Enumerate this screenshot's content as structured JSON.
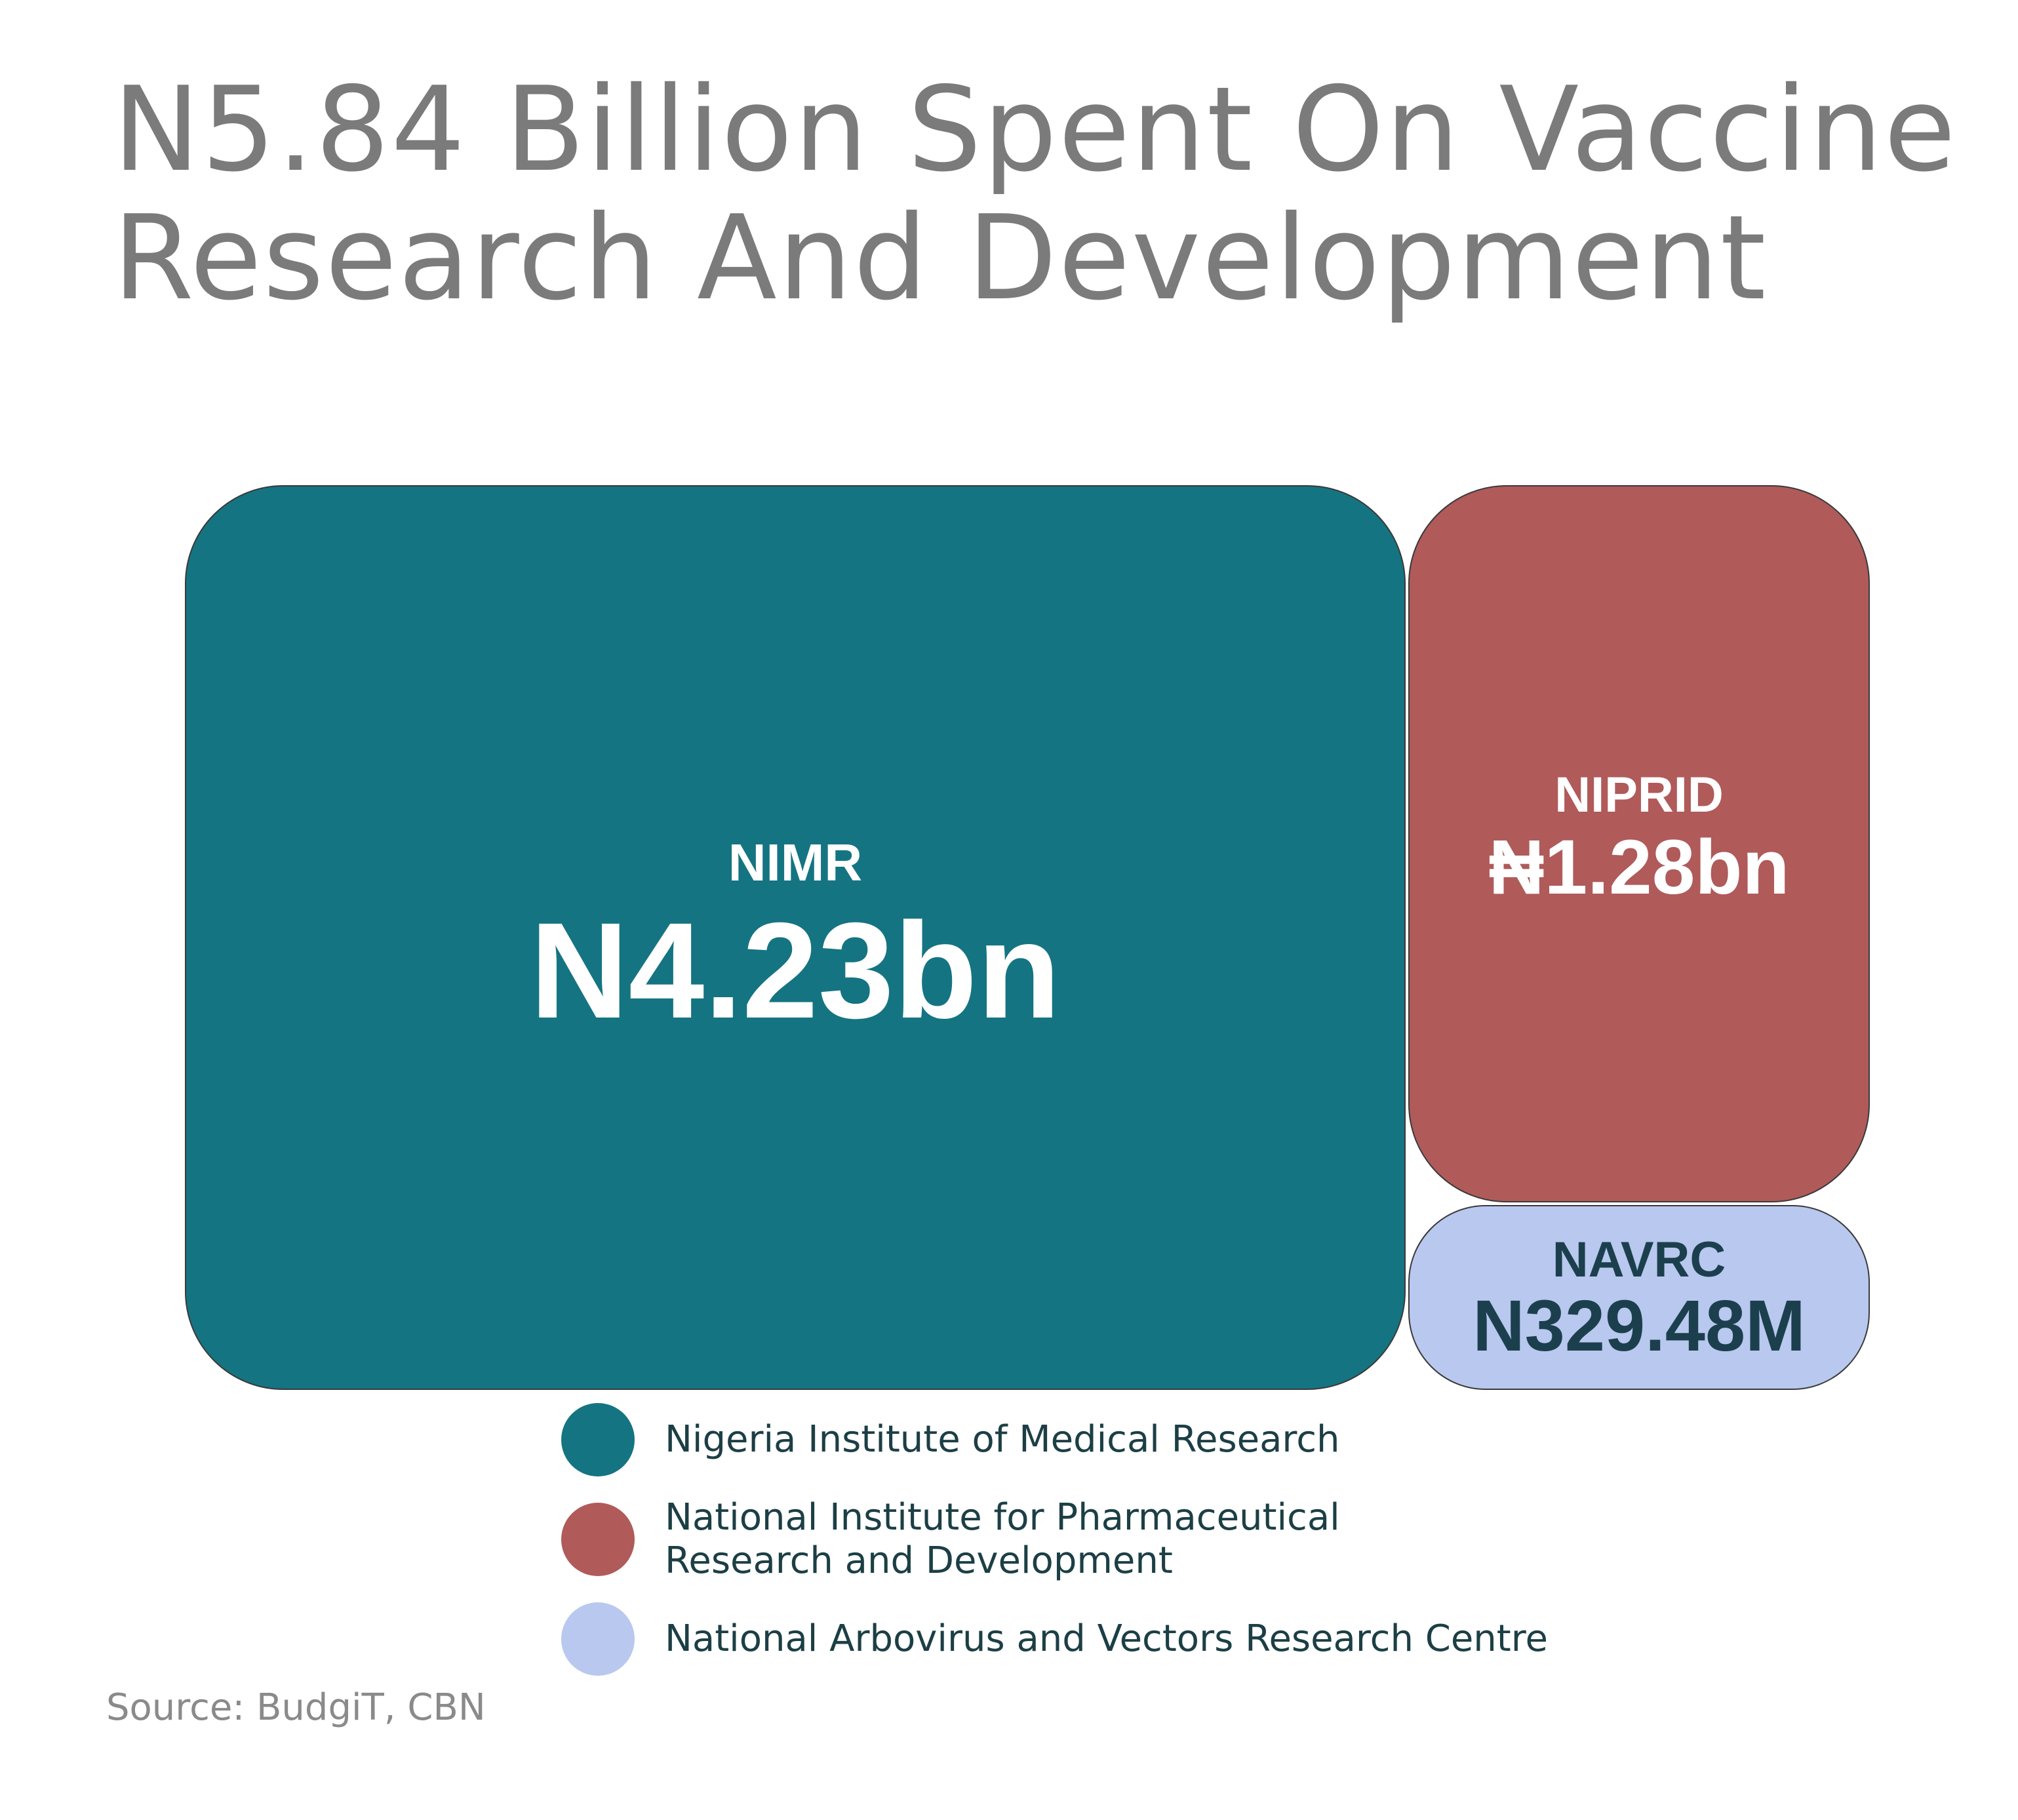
{
  "chart_data": {
    "type": "treemap",
    "title_lines": [
      "N5.84 Billion Spent On Vaccine",
      "Research And Development"
    ],
    "items": [
      {
        "name": "NIMR",
        "value_label": "N4.23bn",
        "value": 4.23,
        "full_name": "Nigeria Institute of Medical Research",
        "color": "#157482",
        "text_color": "#ffffff"
      },
      {
        "name": "NIPRID",
        "value_label": "₦1.28bn",
        "value": 1.28,
        "full_name": "National Institute for Pharmaceutical\nResearch and Development",
        "color": "#b05a5a",
        "text_color": "#ffffff"
      },
      {
        "name": "NAVRC",
        "value_label": "N329.48M",
        "value": 0.32948,
        "full_name": "National Arbovirus and Vectors Research Centre",
        "color": "#b9c8ef",
        "text_color": "#1c3f4d"
      }
    ],
    "source": "Source: BudgiT, CBN"
  }
}
